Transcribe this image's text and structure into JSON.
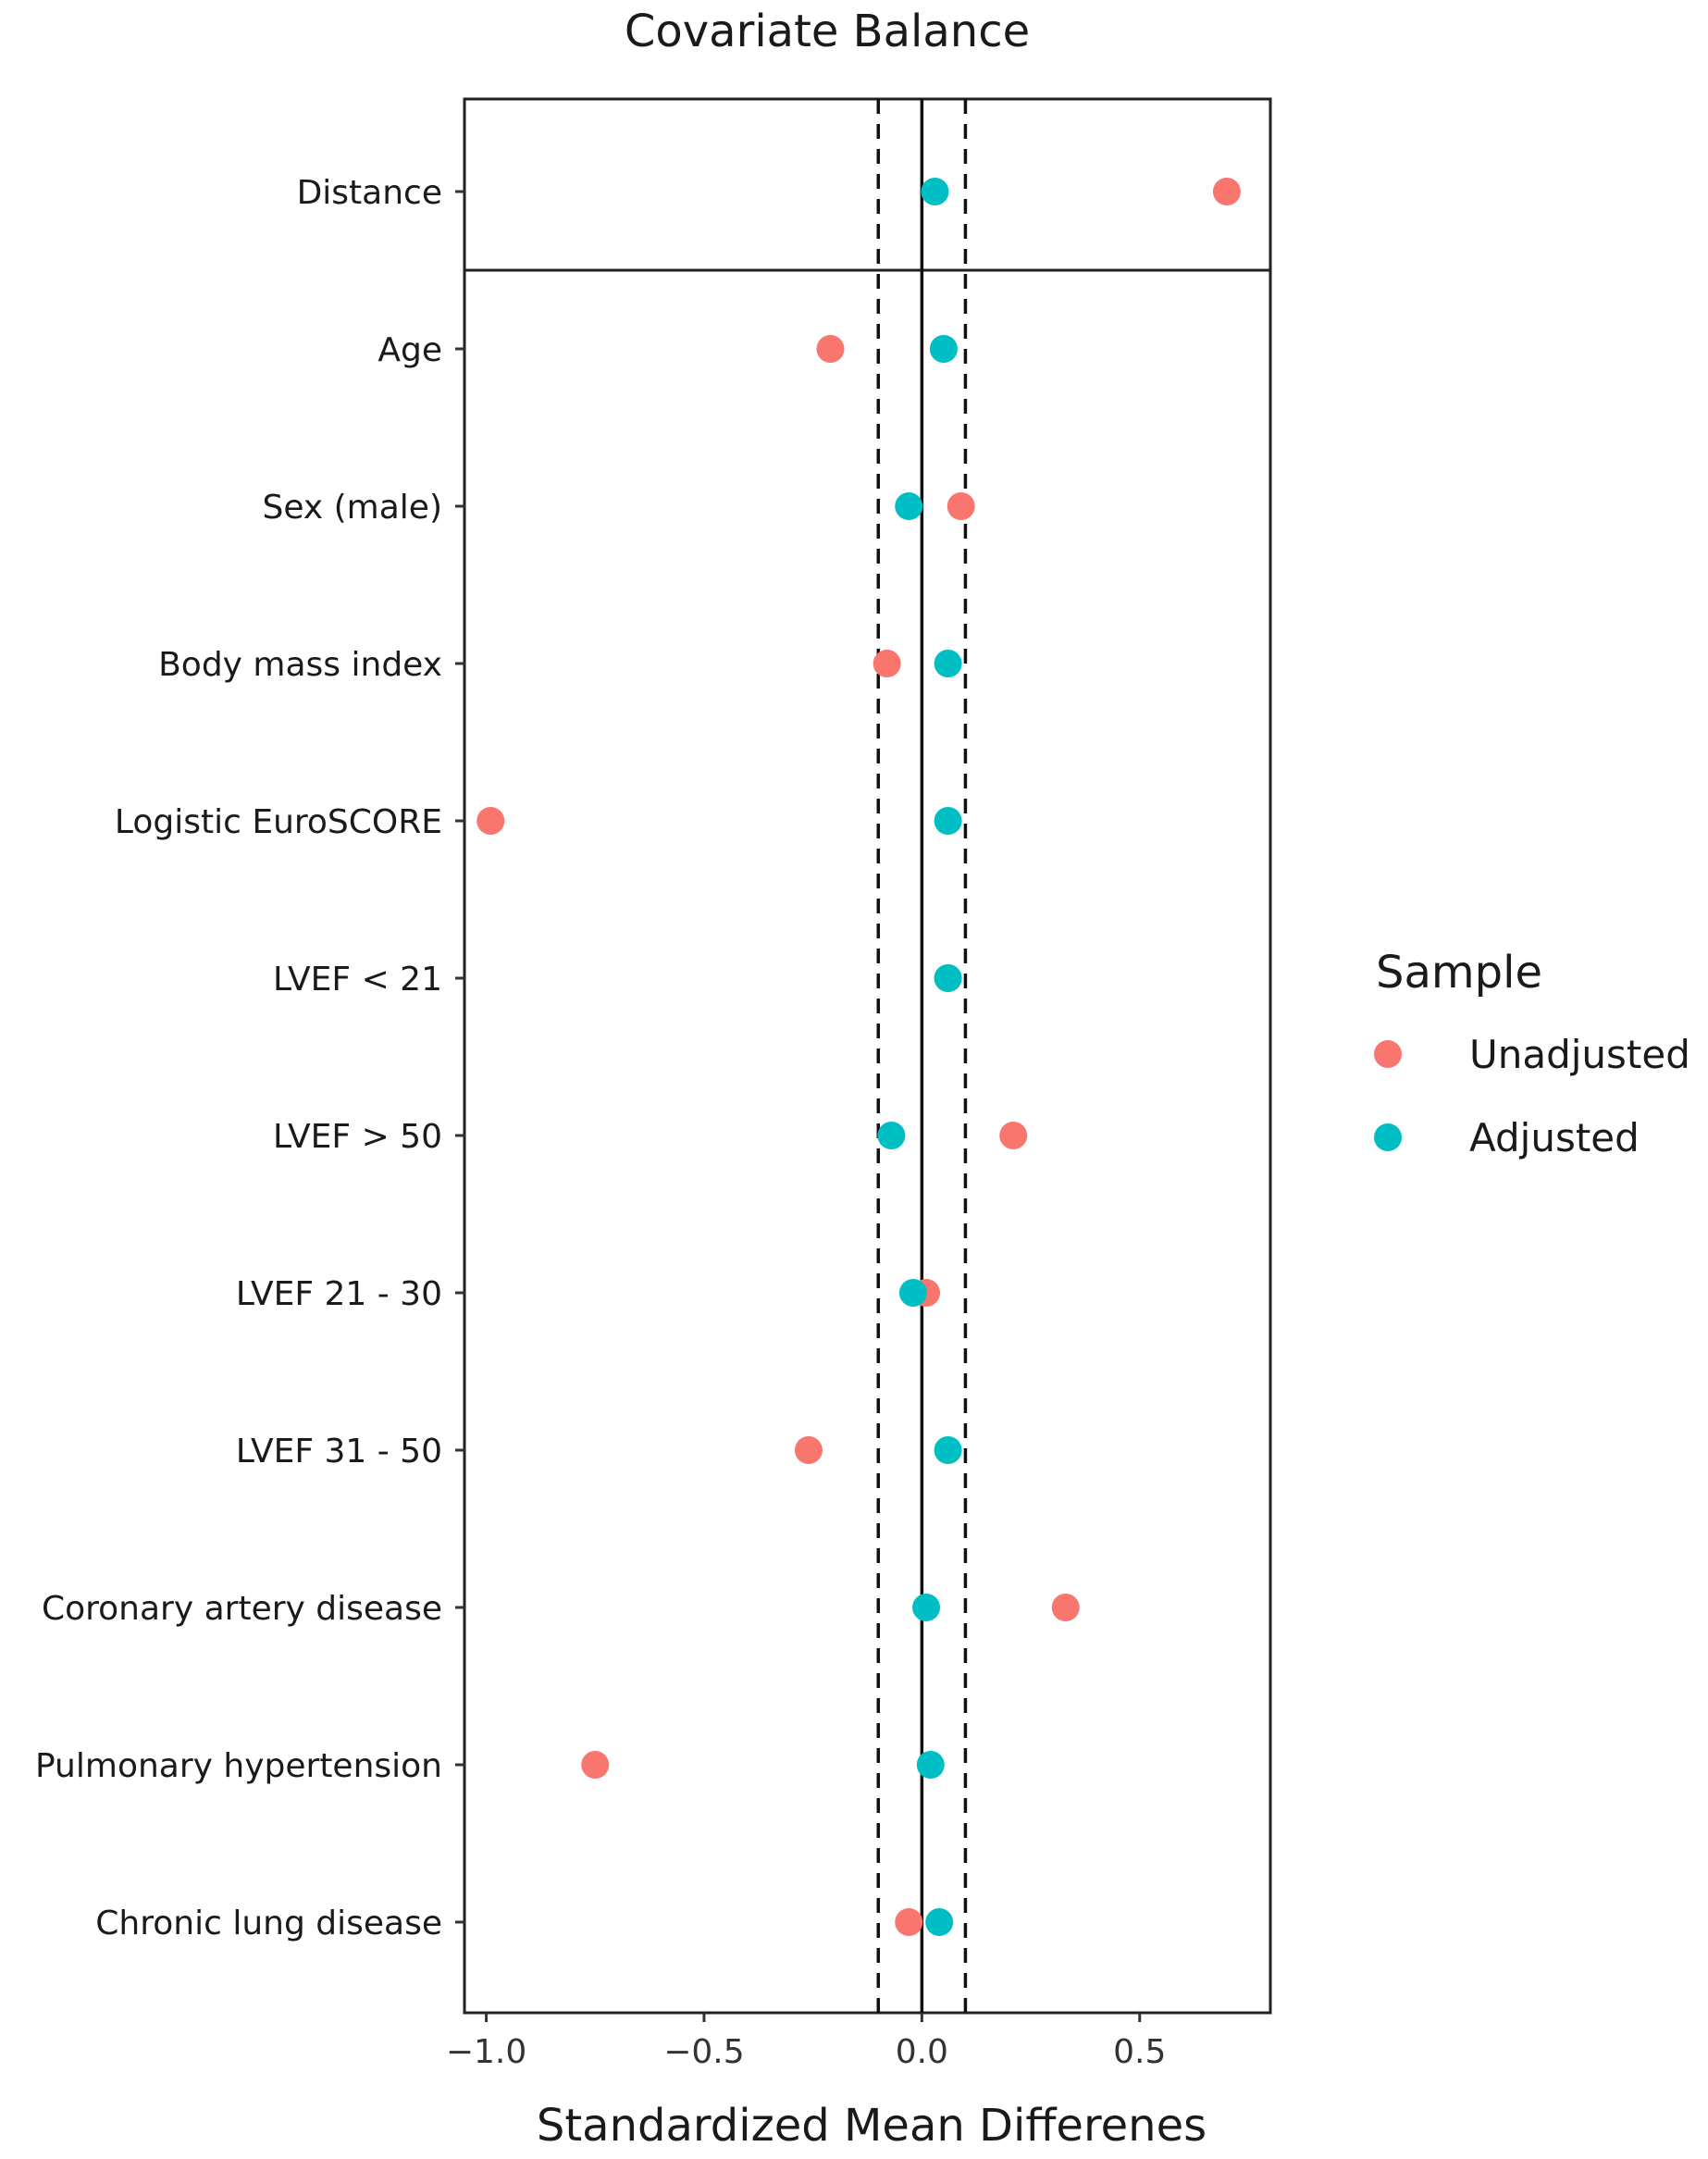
{
  "chart_data": {
    "type": "scatter",
    "title": "Covariate Balance",
    "xlabel": "Standardized Mean Differenes",
    "ylabel": "",
    "xlim": [
      -1.05,
      0.8
    ],
    "xticks": [
      -1.0,
      -0.5,
      0.0,
      0.5
    ],
    "xtick_labels": [
      "−1.0",
      "−0.5",
      "0.0",
      "0.5"
    ],
    "reference_lines": {
      "solid": 0.0,
      "dashed": [
        -0.1,
        0.1
      ]
    },
    "categories": [
      "Distance",
      "Age",
      "Sex (male)",
      "Body mass index",
      "Logistic EuroSCORE",
      "LVEF < 21",
      "LVEF > 50",
      "LVEF 21 - 30",
      "LVEF 31 - 50",
      "Coronary artery disease",
      "Pulmonary hypertension",
      "Chronic lung disease"
    ],
    "series": [
      {
        "name": "Unadjusted",
        "color": "#F8766D",
        "values": [
          0.7,
          -0.21,
          0.09,
          -0.08,
          -0.99,
          0.06,
          0.21,
          0.01,
          -0.26,
          0.33,
          -0.75,
          -0.03
        ]
      },
      {
        "name": "Adjusted",
        "color": "#00BFC4",
        "values": [
          0.03,
          0.05,
          -0.03,
          0.06,
          0.06,
          0.06,
          -0.07,
          -0.02,
          0.06,
          0.01,
          0.02,
          0.04
        ]
      }
    ],
    "legend": {
      "title": "Sample",
      "position": "right"
    }
  }
}
